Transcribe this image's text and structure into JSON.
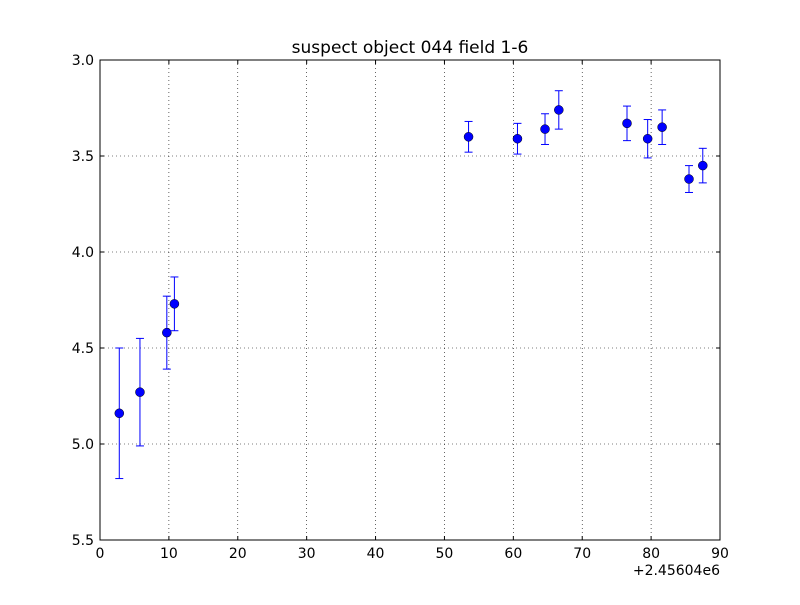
{
  "chart_data": {
    "type": "scatter",
    "title": "suspect object 044 field 1-6",
    "xlabel": "",
    "ylabel": "",
    "x_offset_label": "+2.45604e6",
    "xlim": [
      0,
      90
    ],
    "ylim": [
      3.0,
      5.5
    ],
    "y_inverted": true,
    "grid": true,
    "grid_style": "dotted",
    "x_ticks": [
      "0",
      "10",
      "20",
      "30",
      "40",
      "50",
      "60",
      "70",
      "80",
      "90"
    ],
    "y_ticks": [
      "3.0",
      "3.5",
      "4.0",
      "4.5",
      "5.0",
      "5.5"
    ],
    "marker_color": "#0000ff",
    "errorbar_color": "#0000ff",
    "series": [
      {
        "x": [
          2.8,
          5.8,
          9.7,
          10.8,
          53.5,
          60.6,
          64.6,
          66.6,
          76.5,
          79.5,
          81.6,
          85.5,
          87.5
        ],
        "y": [
          4.84,
          4.73,
          4.42,
          4.27,
          3.4,
          3.41,
          3.36,
          3.26,
          3.33,
          3.41,
          3.35,
          3.62,
          3.55
        ],
        "yerr": [
          0.34,
          0.28,
          0.19,
          0.14,
          0.08,
          0.08,
          0.08,
          0.1,
          0.09,
          0.1,
          0.09,
          0.07,
          0.09
        ]
      }
    ]
  }
}
